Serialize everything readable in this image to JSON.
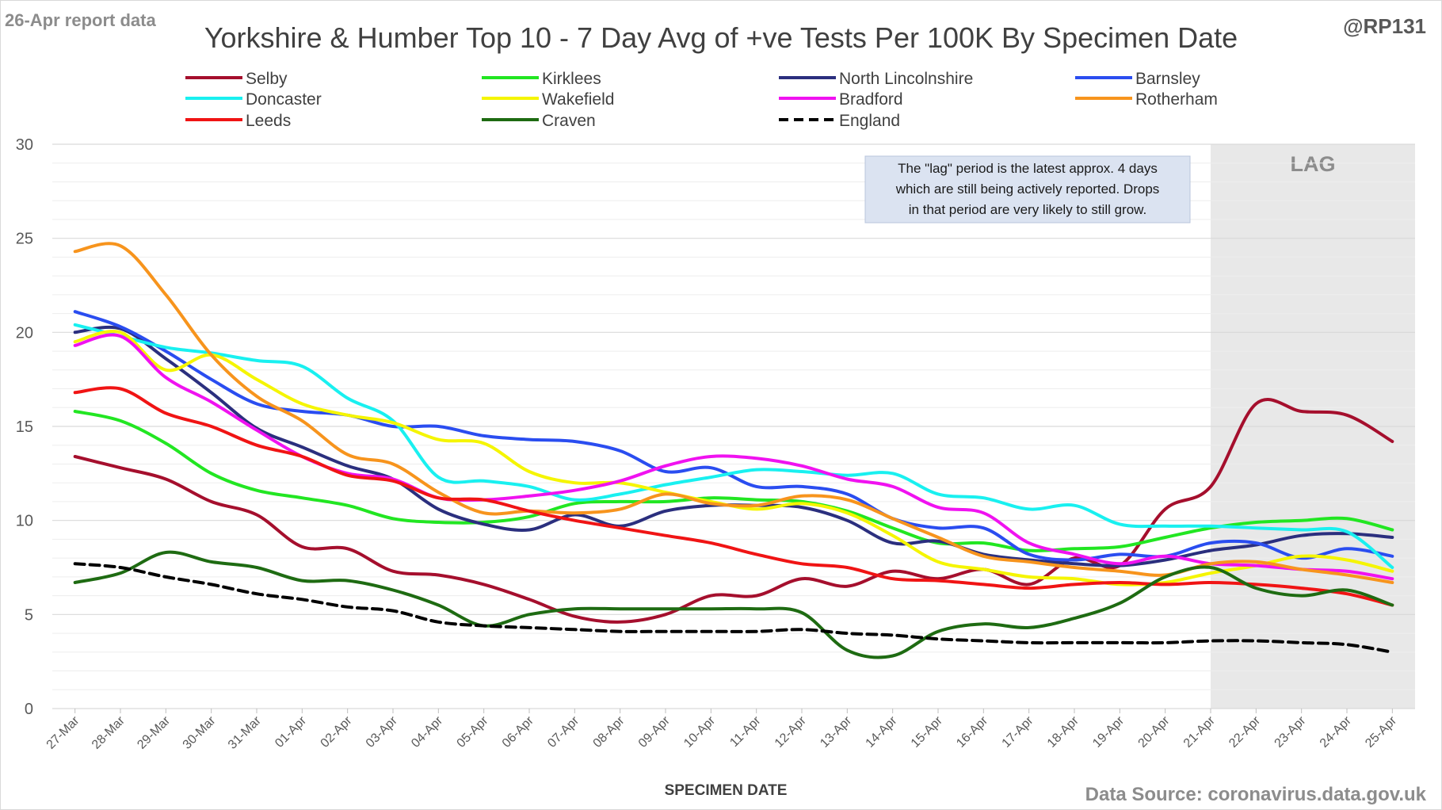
{
  "header": {
    "report_label": "26-Apr report data",
    "handle": "@RP131",
    "source": "Data Source: coronavirus.data.gov.uk"
  },
  "note": {
    "lines": [
      "The \"lag\" period is the latest approx. 4 days",
      "which are still being actively reported.  Drops",
      "in that period are very likely to still grow."
    ]
  },
  "chart_data": {
    "type": "line",
    "title": "Yorkshire & Humber Top 10 - 7 Day Avg of +ve Tests Per 100K By Specimen Date",
    "xlabel": "SPECIMEN DATE",
    "ylabel": "",
    "ylim": [
      0,
      30
    ],
    "yticks": [
      0,
      5,
      10,
      15,
      20,
      25,
      30
    ],
    "grid": true,
    "legend_position": "top",
    "lag_label": "LAG",
    "lag_start": "21-Apr",
    "categories": [
      "27-Mar",
      "28-Mar",
      "29-Mar",
      "30-Mar",
      "31-Mar",
      "01-Apr",
      "02-Apr",
      "03-Apr",
      "04-Apr",
      "05-Apr",
      "06-Apr",
      "07-Apr",
      "08-Apr",
      "09-Apr",
      "10-Apr",
      "11-Apr",
      "12-Apr",
      "13-Apr",
      "14-Apr",
      "15-Apr",
      "16-Apr",
      "17-Apr",
      "18-Apr",
      "19-Apr",
      "20-Apr",
      "21-Apr",
      "22-Apr",
      "23-Apr",
      "24-Apr",
      "25-Apr"
    ],
    "series": [
      {
        "name": "Selby",
        "color": "#a50f2d",
        "dashed": false,
        "values": [
          13.4,
          12.8,
          12.2,
          11.0,
          10.3,
          8.6,
          8.5,
          7.3,
          7.1,
          6.6,
          5.8,
          4.9,
          4.6,
          5.0,
          6.0,
          6.0,
          6.9,
          6.5,
          7.3,
          6.9,
          7.4,
          6.6,
          8.0,
          7.6,
          10.6,
          11.8,
          16.2,
          15.8,
          15.6,
          14.2
        ]
      },
      {
        "name": "Kirklees",
        "color": "#22e622",
        "dashed": false,
        "values": [
          15.8,
          15.3,
          14.1,
          12.5,
          11.6,
          11.2,
          10.8,
          10.1,
          9.9,
          9.9,
          10.2,
          10.9,
          11.0,
          11.0,
          11.2,
          11.1,
          11.0,
          10.5,
          9.6,
          8.8,
          8.8,
          8.4,
          8.5,
          8.6,
          9.1,
          9.6,
          9.9,
          10.0,
          10.1,
          9.5
        ]
      },
      {
        "name": "North Lincolnshire",
        "color": "#2b2f7e",
        "dashed": false,
        "values": [
          20.0,
          20.2,
          18.6,
          16.8,
          14.9,
          13.9,
          12.9,
          12.2,
          10.6,
          9.8,
          9.5,
          10.3,
          9.7,
          10.5,
          10.8,
          10.8,
          10.7,
          10.0,
          8.8,
          8.9,
          8.2,
          7.9,
          7.7,
          7.6,
          7.9,
          8.4,
          8.7,
          9.2,
          9.3,
          9.1
        ]
      },
      {
        "name": "Barnsley",
        "color": "#2a4df0",
        "dashed": false,
        "values": [
          21.1,
          20.3,
          19.0,
          17.5,
          16.2,
          15.8,
          15.6,
          15.0,
          15.0,
          14.5,
          14.3,
          14.2,
          13.7,
          12.6,
          12.8,
          11.8,
          11.8,
          11.4,
          10.1,
          9.6,
          9.6,
          8.2,
          7.9,
          8.2,
          8.1,
          8.8,
          8.8,
          8.0,
          8.5,
          8.1
        ]
      },
      {
        "name": "Doncaster",
        "color": "#19f0f0",
        "dashed": false,
        "values": [
          20.4,
          19.8,
          19.2,
          18.9,
          18.5,
          18.2,
          16.5,
          15.3,
          12.3,
          12.1,
          11.8,
          11.1,
          11.4,
          11.9,
          12.3,
          12.7,
          12.6,
          12.4,
          12.5,
          11.4,
          11.2,
          10.6,
          10.8,
          9.8,
          9.7,
          9.7,
          9.6,
          9.5,
          9.4,
          7.5
        ]
      },
      {
        "name": "Wakefield",
        "color": "#f5f500",
        "dashed": false,
        "values": [
          19.5,
          20.0,
          18.0,
          18.8,
          17.5,
          16.2,
          15.6,
          15.2,
          14.3,
          14.1,
          12.6,
          12.0,
          12.0,
          11.5,
          11.0,
          10.6,
          10.9,
          10.4,
          9.2,
          7.8,
          7.4,
          7.0,
          6.9,
          6.6,
          6.7,
          7.2,
          7.6,
          8.1,
          7.9,
          7.3
        ]
      },
      {
        "name": "Bradford",
        "color": "#f012f0",
        "dashed": false,
        "values": [
          19.3,
          19.8,
          17.6,
          16.3,
          14.8,
          13.4,
          12.5,
          12.2,
          11.2,
          11.1,
          11.3,
          11.6,
          12.1,
          12.9,
          13.4,
          13.3,
          12.9,
          12.2,
          11.8,
          10.7,
          10.4,
          8.8,
          8.2,
          7.7,
          8.1,
          7.7,
          7.6,
          7.4,
          7.3,
          6.9
        ]
      },
      {
        "name": "Rotherham",
        "color": "#f7941d",
        "dashed": false,
        "values": [
          24.3,
          24.6,
          22.0,
          18.8,
          16.6,
          15.3,
          13.5,
          13.0,
          11.5,
          10.4,
          10.5,
          10.4,
          10.6,
          11.4,
          10.9,
          10.8,
          11.3,
          11.1,
          10.1,
          9.1,
          8.1,
          7.8,
          7.5,
          7.3,
          7.1,
          7.7,
          7.8,
          7.4,
          7.1,
          6.7
        ]
      },
      {
        "name": "Leeds",
        "color": "#f01414",
        "dashed": false,
        "values": [
          16.8,
          17.0,
          15.7,
          15.0,
          14.0,
          13.4,
          12.4,
          12.1,
          11.2,
          11.1,
          10.5,
          10.0,
          9.6,
          9.2,
          8.8,
          8.2,
          7.7,
          7.5,
          6.9,
          6.8,
          6.6,
          6.4,
          6.6,
          6.7,
          6.6,
          6.7,
          6.6,
          6.4,
          6.1,
          5.5
        ]
      },
      {
        "name": "Craven",
        "color": "#1e6b12",
        "dashed": false,
        "values": [
          6.7,
          7.2,
          8.3,
          7.8,
          7.5,
          6.8,
          6.8,
          6.3,
          5.5,
          4.4,
          5.0,
          5.3,
          5.3,
          5.3,
          5.3,
          5.3,
          5.1,
          3.1,
          2.8,
          4.1,
          4.5,
          4.3,
          4.8,
          5.6,
          7.0,
          7.5,
          6.4,
          6.0,
          6.3,
          5.5
        ]
      },
      {
        "name": "England",
        "color": "#000000",
        "dashed": true,
        "values": [
          7.7,
          7.5,
          7.0,
          6.6,
          6.1,
          5.8,
          5.4,
          5.2,
          4.6,
          4.4,
          4.3,
          4.2,
          4.1,
          4.1,
          4.1,
          4.1,
          4.2,
          4.0,
          3.9,
          3.7,
          3.6,
          3.5,
          3.5,
          3.5,
          3.5,
          3.6,
          3.6,
          3.5,
          3.4,
          3.0
        ]
      }
    ]
  }
}
